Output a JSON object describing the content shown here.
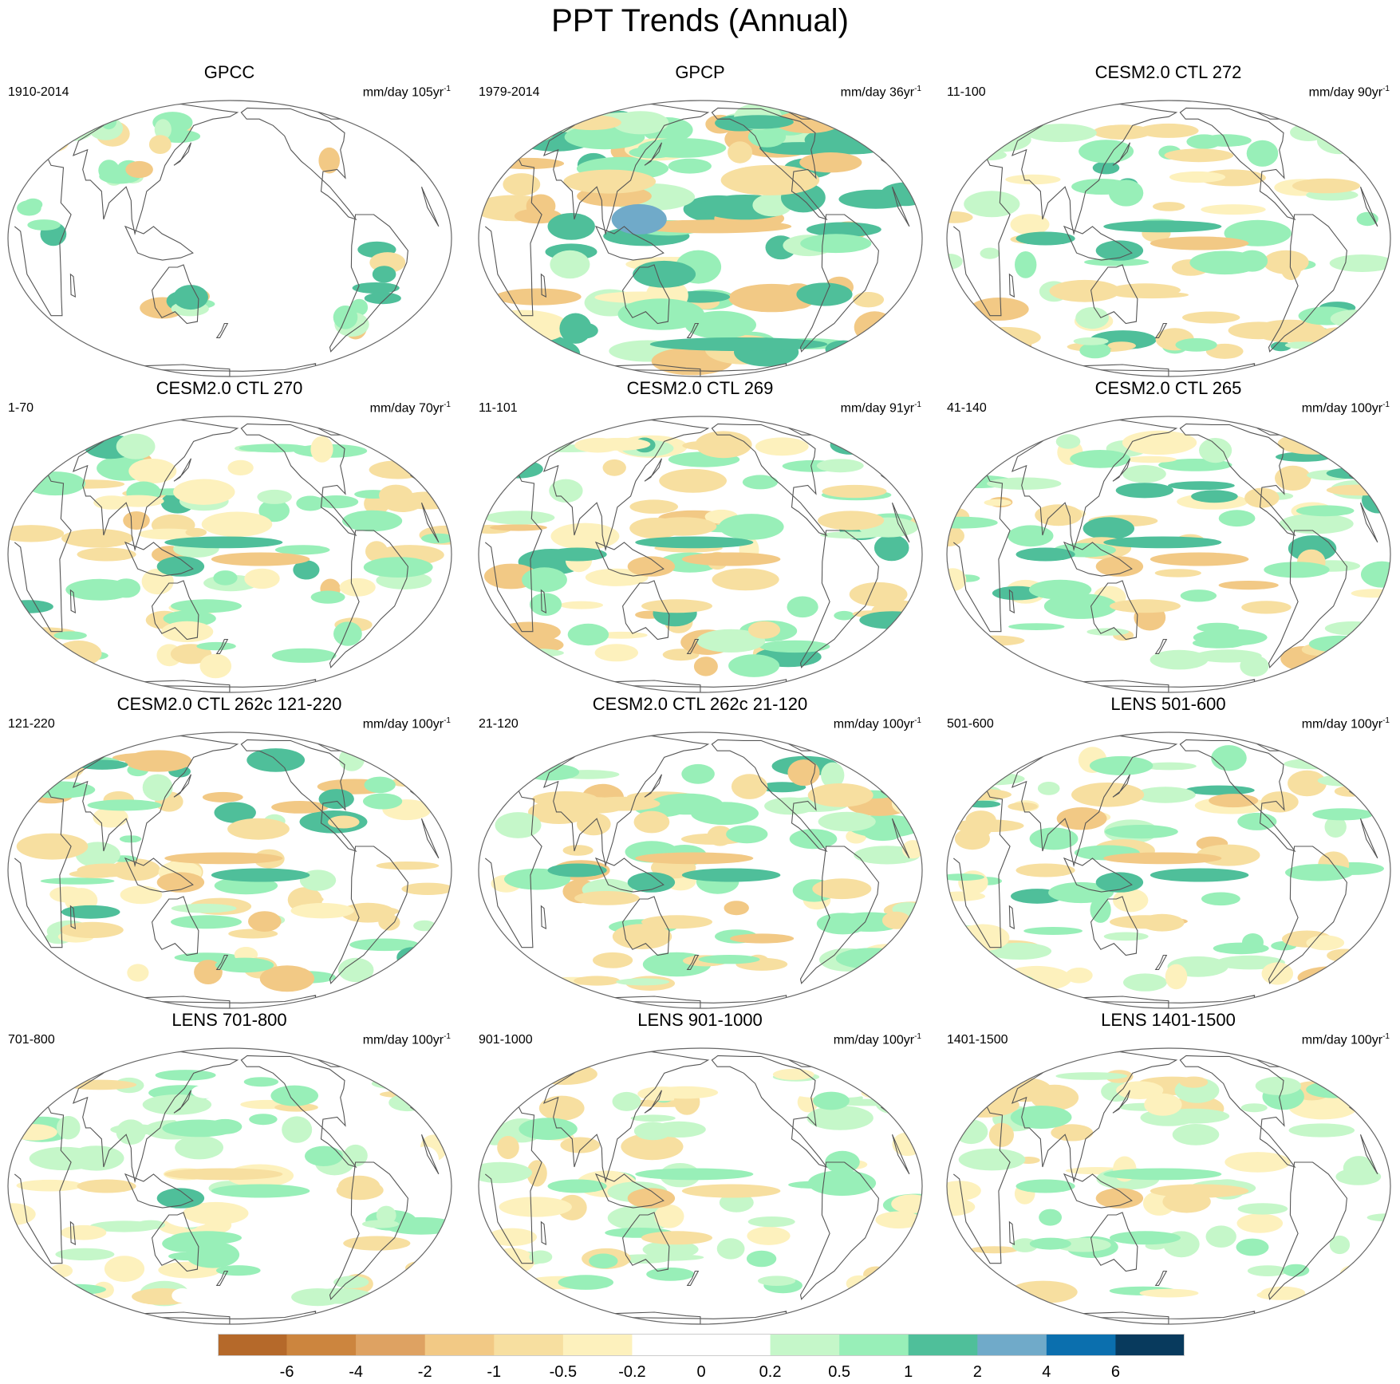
{
  "title": "PPT Trends (Annual)",
  "units_base": "mm/day",
  "units_suffix": "yr",
  "units_exp": "-1",
  "colors": {
    "coast": "#555555",
    "border": "#666666",
    "levels": [
      "#b5692a",
      "#cc853e",
      "#dea262",
      "#f2c985",
      "#f7dfa0",
      "#fdf1bd",
      "#ffffff",
      "#ffffff",
      "#c5f7c9",
      "#98efb8",
      "#4fbf9a",
      "#70aac9",
      "#0b6fae",
      "#083a5d"
    ]
  },
  "panels": [
    {
      "title": "GPCC",
      "period": "1910-2014",
      "units_num": "105",
      "pattern": "gpcc",
      "seed": 3
    },
    {
      "title": "GPCP",
      "period": "1979-2014",
      "units_num": "36",
      "pattern": "gpcp",
      "seed": 11
    },
    {
      "title": "CESM2.0 CTL 272",
      "period": "11-100",
      "units_num": "90",
      "pattern": "model",
      "seed": 17
    },
    {
      "title": "CESM2.0 CTL 270",
      "period": "1-70",
      "units_num": "70",
      "pattern": "model",
      "seed": 23
    },
    {
      "title": "CESM2.0 CTL 269",
      "period": "11-101",
      "units_num": "91",
      "pattern": "model",
      "seed": 29
    },
    {
      "title": "CESM2.0 CTL 265",
      "period": "41-140",
      "units_num": "100",
      "pattern": "model",
      "seed": 31
    },
    {
      "title": "CESM2.0 CTL 262c 121-220",
      "period": "121-220",
      "units_num": "100",
      "pattern": "model",
      "seed": 37
    },
    {
      "title": "CESM2.0 CTL 262c 21-120",
      "period": "21-120",
      "units_num": "100",
      "pattern": "model",
      "seed": 41
    },
    {
      "title": "LENS 501-600",
      "period": "501-600",
      "units_num": "100",
      "pattern": "model",
      "seed": 43
    },
    {
      "title": "LENS 701-800",
      "period": "701-800",
      "units_num": "100",
      "pattern": "weak",
      "seed": 47
    },
    {
      "title": "LENS 901-1000",
      "period": "901-1000",
      "units_num": "100",
      "pattern": "weak",
      "seed": 53
    },
    {
      "title": "LENS 1401-1500",
      "period": "1401-1500",
      "units_num": "100",
      "pattern": "weak",
      "seed": 59
    }
  ],
  "colorbar": {
    "labels": [
      "-6",
      "-4",
      "-2",
      "-1",
      "-0.5",
      "-0.2",
      "0",
      "0.2",
      "0.5",
      "1",
      "2",
      "4",
      "6"
    ]
  }
}
